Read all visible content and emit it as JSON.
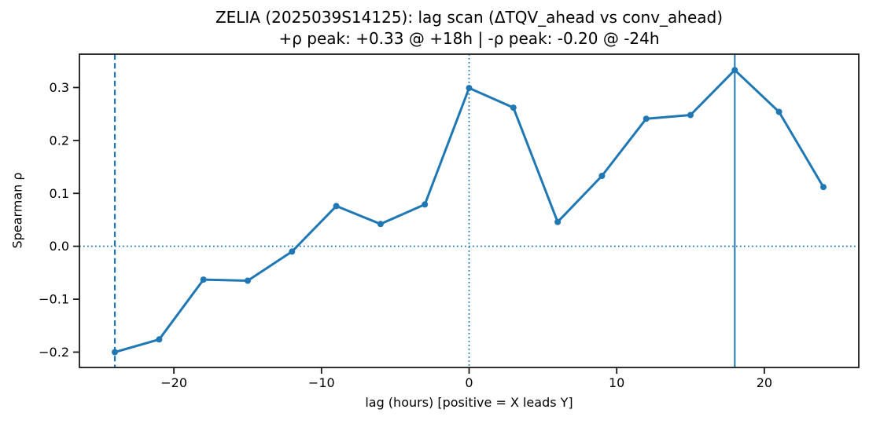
{
  "chart_data": {
    "type": "line",
    "title": "ZELIA (2025039S14125): lag scan (ΔTQV_ahead vs conv_ahead)",
    "subtitle": "+ρ peak: +0.33 @ +18h | -ρ peak: -0.20 @ -24h",
    "xlabel": "lag (hours) [positive = X leads Y]",
    "ylabel": "Spearman ρ",
    "x": [
      -24,
      -21,
      -18,
      -15,
      -12,
      -9,
      -6,
      -3,
      0,
      3,
      6,
      9,
      12,
      15,
      18,
      21,
      24
    ],
    "y": [
      -0.2,
      -0.176,
      -0.063,
      -0.065,
      -0.01,
      0.076,
      0.042,
      0.079,
      0.299,
      0.262,
      0.046,
      0.133,
      0.241,
      0.248,
      0.333,
      0.254,
      0.112
    ],
    "xlim": [
      -26.4,
      26.4
    ],
    "ylim": [
      -0.229,
      0.363
    ],
    "x_ticks": [
      -20,
      -10,
      0,
      10,
      20
    ],
    "x_tick_labels": [
      "−20",
      "−10",
      "0",
      "10",
      "20"
    ],
    "y_ticks": [
      -0.2,
      -0.1,
      0.0,
      0.1,
      0.2,
      0.3
    ],
    "y_tick_labels": [
      "−0.2",
      "−0.1",
      "0.0",
      "0.1",
      "0.2",
      "0.3"
    ],
    "series_color": "#1f77b4",
    "axis_color": "#1a1a1a",
    "grid": false,
    "legend_position": "none",
    "marker": "circle",
    "reference_lines": [
      {
        "axis": "x",
        "value": -24,
        "style": "dashed",
        "label": "neg-peak-lag"
      },
      {
        "axis": "x",
        "value": 0,
        "style": "dotted",
        "label": "zero-lag"
      },
      {
        "axis": "x",
        "value": 18,
        "style": "solid",
        "label": "pos-peak-lag"
      },
      {
        "axis": "y",
        "value": 0,
        "style": "dotted",
        "label": "zero-rho"
      }
    ]
  }
}
